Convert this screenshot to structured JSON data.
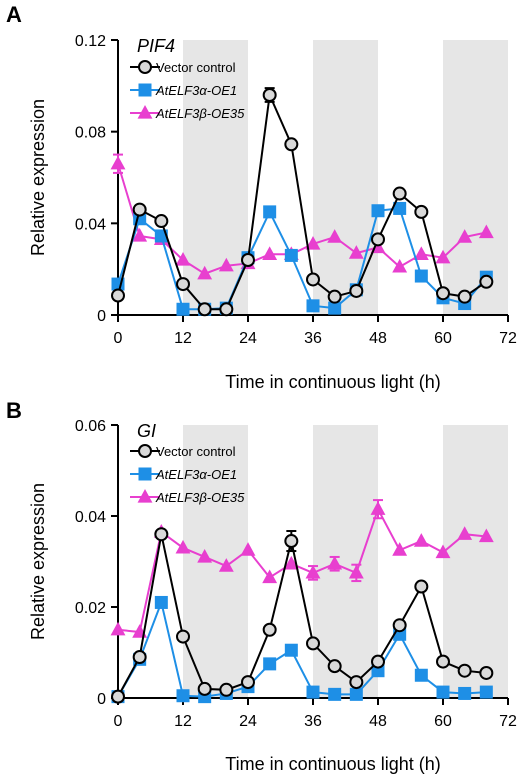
{
  "chart_data": [
    {
      "type": "line",
      "panel_label": "A",
      "title": "PIF4",
      "xlabel": "Time in continuous light (h)",
      "ylabel": "Relative expression",
      "xlim": [
        0,
        72
      ],
      "ylim": [
        0,
        0.12
      ],
      "xticks": [
        "0",
        "12",
        "24",
        "36",
        "48",
        "60",
        "72"
      ],
      "yticks": [
        "0",
        "0.04",
        "0.08",
        "0.12"
      ],
      "shaded_intervals": [
        [
          12,
          24
        ],
        [
          36,
          48
        ],
        [
          60,
          72
        ]
      ],
      "legend_position": "top-left",
      "series": [
        {
          "name": "Vector control",
          "marker": "circle",
          "color": "#000000",
          "fill": "#d9d9d9",
          "x": [
            0,
            4,
            8,
            12,
            16,
            20,
            24,
            28,
            32,
            36,
            40,
            44,
            48,
            52,
            56,
            60,
            64,
            68
          ],
          "y": [
            0.0085,
            0.046,
            0.041,
            0.0135,
            0.0025,
            0.0025,
            0.024,
            0.096,
            0.0745,
            0.0155,
            0.008,
            0.0105,
            0.033,
            0.053,
            0.045,
            0.0095,
            0.008,
            0.0145
          ],
          "error": [
            0,
            0,
            0,
            0,
            0,
            0,
            0,
            0.003,
            0,
            0,
            0,
            0,
            0,
            0,
            0,
            0,
            0,
            0
          ]
        },
        {
          "name": "AtELF3α-OE1",
          "marker": "square",
          "color": "#1e8fe6",
          "fill": "#1e8fe6",
          "x": [
            0,
            4,
            8,
            12,
            16,
            20,
            24,
            28,
            32,
            36,
            40,
            44,
            48,
            52,
            56,
            60,
            64,
            68
          ],
          "y": [
            0.0135,
            0.042,
            0.0345,
            0.0025,
            0.0025,
            0.003,
            0.025,
            0.045,
            0.026,
            0.004,
            0.003,
            0.011,
            0.0455,
            0.0465,
            0.017,
            0.0075,
            0.005,
            0.0165
          ],
          "error": [
            0,
            0,
            0,
            0,
            0,
            0,
            0,
            0,
            0,
            0,
            0,
            0,
            0,
            0,
            0,
            0,
            0,
            0
          ]
        },
        {
          "name": "AtELF3β-OE35",
          "marker": "triangle",
          "color": "#e83fcf",
          "fill": "#e83fcf",
          "x": [
            0,
            4,
            8,
            12,
            16,
            20,
            24,
            28,
            32,
            36,
            40,
            44,
            48,
            52,
            56,
            60,
            64,
            68
          ],
          "y": [
            0.066,
            0.0345,
            0.033,
            0.024,
            0.018,
            0.0215,
            0.0225,
            0.0265,
            0.0265,
            0.031,
            0.034,
            0.027,
            0.0295,
            0.021,
            0.0265,
            0.025,
            0.034,
            0.036
          ],
          "error": [
            0.004,
            0,
            0,
            0,
            0,
            0,
            0,
            0,
            0,
            0,
            0,
            0,
            0,
            0,
            0,
            0,
            0,
            0
          ]
        }
      ]
    },
    {
      "type": "line",
      "panel_label": "B",
      "title": "GI",
      "xlabel": "Time in continuous light (h)",
      "ylabel": "Relative expression",
      "xlim": [
        0,
        72
      ],
      "ylim": [
        0,
        0.06
      ],
      "xticks": [
        "0",
        "12",
        "24",
        "36",
        "48",
        "60",
        "72"
      ],
      "yticks": [
        "0",
        "0.02",
        "0.04",
        "0.06"
      ],
      "shaded_intervals": [
        [
          12,
          24
        ],
        [
          36,
          48
        ],
        [
          60,
          72
        ]
      ],
      "legend_position": "top-left",
      "series": [
        {
          "name": "Vector control",
          "marker": "circle",
          "color": "#000000",
          "fill": "#d9d9d9",
          "x": [
            0,
            4,
            8,
            12,
            16,
            20,
            24,
            28,
            32,
            36,
            40,
            44,
            48,
            52,
            56,
            60,
            64,
            68
          ],
          "y": [
            0.0003,
            0.009,
            0.036,
            0.0135,
            0.002,
            0.0018,
            0.0035,
            0.015,
            0.0345,
            0.012,
            0.007,
            0.0035,
            0.008,
            0.016,
            0.0245,
            0.008,
            0.006,
            0.0055
          ],
          "error": [
            0,
            0,
            0,
            0,
            0,
            0,
            0,
            0,
            0.0022,
            0,
            0,
            0,
            0,
            0,
            0,
            0,
            0,
            0
          ]
        },
        {
          "name": "AtELF3α-OE1",
          "marker": "square",
          "color": "#1e8fe6",
          "fill": "#1e8fe6",
          "x": [
            0,
            4,
            8,
            12,
            16,
            20,
            24,
            28,
            32,
            36,
            40,
            44,
            48,
            52,
            56,
            60,
            64,
            68
          ],
          "y": [
            0.0003,
            0.0085,
            0.021,
            0.0005,
            0.0003,
            0.001,
            0.0025,
            0.0075,
            0.0105,
            0.0013,
            0.0008,
            0.0008,
            0.006,
            0.014,
            0.005,
            0.0013,
            0.001,
            0.0013
          ],
          "error": [
            0,
            0,
            0,
            0,
            0,
            0,
            0,
            0,
            0,
            0,
            0,
            0,
            0,
            0,
            0,
            0,
            0,
            0
          ]
        },
        {
          "name": "AtELF3β-OE35",
          "marker": "triangle",
          "color": "#e83fcf",
          "fill": "#e83fcf",
          "x": [
            0,
            4,
            8,
            12,
            16,
            20,
            24,
            28,
            32,
            36,
            40,
            44,
            48,
            52,
            56,
            60,
            64,
            68
          ],
          "y": [
            0.015,
            0.0145,
            0.0365,
            0.033,
            0.031,
            0.029,
            0.0325,
            0.0265,
            0.0295,
            0.0275,
            0.0295,
            0.0275,
            0.0415,
            0.0325,
            0.0345,
            0.032,
            0.036,
            0.0355
          ],
          "error": [
            0,
            0,
            0,
            0,
            0,
            0,
            0,
            0,
            0,
            0.0015,
            0.0015,
            0.0018,
            0.002,
            0,
            0,
            0,
            0,
            0
          ]
        }
      ]
    }
  ]
}
